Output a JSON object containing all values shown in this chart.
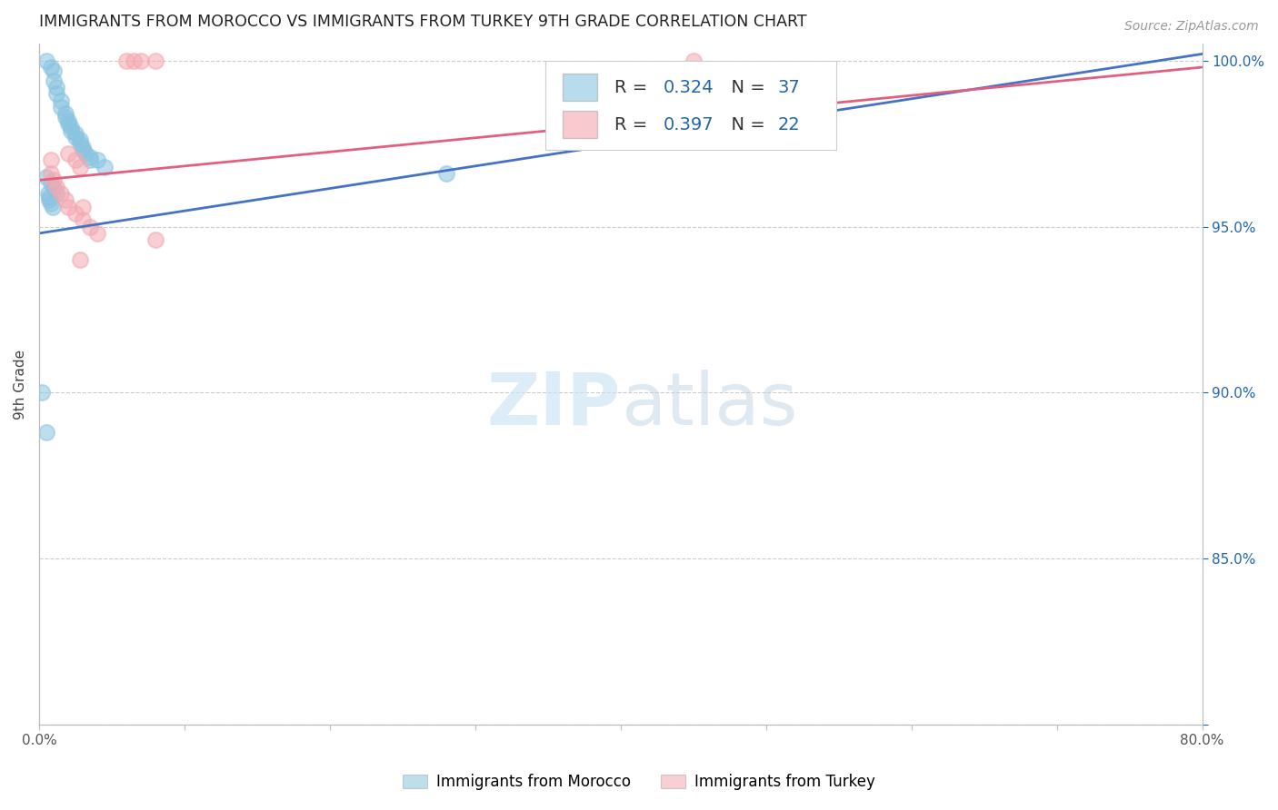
{
  "title": "IMMIGRANTS FROM MOROCCO VS IMMIGRANTS FROM TURKEY 9TH GRADE CORRELATION CHART",
  "source": "Source: ZipAtlas.com",
  "ylabel_label": "9th Grade",
  "xlim": [
    0.0,
    0.8
  ],
  "ylim": [
    0.8,
    1.005
  ],
  "xtick_positions": [
    0.0,
    0.1,
    0.2,
    0.3,
    0.4,
    0.5,
    0.6,
    0.7,
    0.8
  ],
  "xtick_labels": [
    "0.0%",
    "",
    "",
    "",
    "",
    "",
    "",
    "",
    "80.0%"
  ],
  "ytick_positions": [
    0.8,
    0.85,
    0.9,
    0.95,
    1.0
  ],
  "ytick_labels": [
    "",
    "85.0%",
    "90.0%",
    "95.0%",
    "100.0%"
  ],
  "morocco_color": "#89c4e1",
  "turkey_color": "#f4a8b0",
  "morocco_line_color": "#4472c4",
  "turkey_line_color": "#e06080",
  "morocco_R": 0.324,
  "morocco_N": 37,
  "turkey_R": 0.397,
  "turkey_N": 22,
  "legend_label_morocco": "Immigrants from Morocco",
  "legend_label_turkey": "Immigrants from Turkey",
  "text_color": "#2166ac",
  "label_color": "#444444",
  "morocco_line_x": [
    0.0,
    0.8
  ],
  "morocco_line_y": [
    0.948,
    1.002
  ],
  "turkey_line_x": [
    0.0,
    0.8
  ],
  "turkey_line_y": [
    0.964,
    0.998
  ],
  "morocco_x": [
    0.005,
    0.008,
    0.01,
    0.01,
    0.012,
    0.012,
    0.015,
    0.015,
    0.018,
    0.018,
    0.02,
    0.02,
    0.022,
    0.022,
    0.025,
    0.025,
    0.028,
    0.028,
    0.03,
    0.03,
    0.032,
    0.035,
    0.035,
    0.04,
    0.045,
    0.28,
    0.005,
    0.008,
    0.01,
    0.012,
    0.002,
    0.005,
    0.006,
    0.007,
    0.007,
    0.008,
    0.009
  ],
  "morocco_y": [
    1.0,
    0.998,
    0.997,
    0.994,
    0.992,
    0.99,
    0.988,
    0.986,
    0.984,
    0.983,
    0.982,
    0.981,
    0.98,
    0.979,
    0.978,
    0.977,
    0.976,
    0.975,
    0.974,
    0.973,
    0.972,
    0.971,
    0.97,
    0.97,
    0.968,
    0.966,
    0.965,
    0.963,
    0.962,
    0.96,
    0.9,
    0.888,
    0.96,
    0.959,
    0.958,
    0.957,
    0.956
  ],
  "turkey_x": [
    0.06,
    0.065,
    0.07,
    0.08,
    0.02,
    0.025,
    0.028,
    0.008,
    0.01,
    0.012,
    0.015,
    0.018,
    0.02,
    0.025,
    0.03,
    0.035,
    0.04,
    0.08,
    0.45,
    0.008,
    0.03,
    0.028
  ],
  "turkey_y": [
    1.0,
    1.0,
    1.0,
    1.0,
    0.972,
    0.97,
    0.968,
    0.966,
    0.964,
    0.962,
    0.96,
    0.958,
    0.956,
    0.954,
    0.952,
    0.95,
    0.948,
    0.946,
    1.0,
    0.97,
    0.956,
    0.94
  ]
}
